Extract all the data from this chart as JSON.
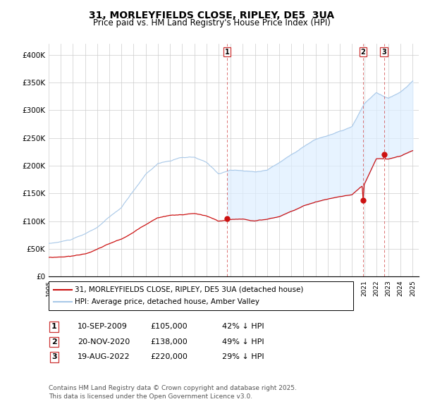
{
  "title": "31, MORLEYFIELDS CLOSE, RIPLEY, DE5  3UA",
  "subtitle": "Price paid vs. HM Land Registry's House Price Index (HPI)",
  "hpi_color": "#a8c8e8",
  "price_color": "#cc1111",
  "vline_color": "#cc3333",
  "fill_color": "#ddeeff",
  "ylim": [
    0,
    420000
  ],
  "yticks": [
    0,
    50000,
    100000,
    150000,
    200000,
    250000,
    300000,
    350000,
    400000
  ],
  "ytick_labels": [
    "£0",
    "£50K",
    "£100K",
    "£150K",
    "£200K",
    "£250K",
    "£300K",
    "£350K",
    "£400K"
  ],
  "xlim_start": 1995.0,
  "xlim_end": 2025.5,
  "legend_line1": "31, MORLEYFIELDS CLOSE, RIPLEY, DE5 3UA (detached house)",
  "legend_line2": "HPI: Average price, detached house, Amber Valley",
  "sales": [
    {
      "num": 1,
      "date": "10-SEP-2009",
      "price": "£105,000",
      "pct": "42% ↓ HPI",
      "year": 2009.69,
      "price_val": 105000
    },
    {
      "num": 2,
      "date": "20-NOV-2020",
      "price": "£138,000",
      "pct": "49% ↓ HPI",
      "year": 2020.89,
      "price_val": 138000
    },
    {
      "num": 3,
      "date": "19-AUG-2022",
      "price": "£220,000",
      "pct": "29% ↓ HPI",
      "year": 2022.63,
      "price_val": 220000
    }
  ],
  "footer1": "Contains HM Land Registry data © Crown copyright and database right 2025.",
  "footer2": "This data is licensed under the Open Government Licence v3.0."
}
